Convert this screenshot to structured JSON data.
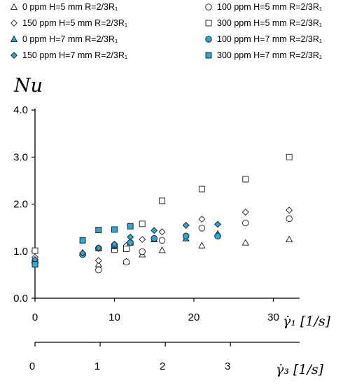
{
  "chart_data": {
    "type": "scatter",
    "ylabel": "Nu",
    "xlabel_primary": "γ̇₁ [1/s]",
    "xlabel_secondary": "γ̇₃ [1/s]",
    "ylim": [
      0,
      4
    ],
    "yticks": [
      "0.0",
      "1.0",
      "2.0",
      "3.0",
      "4.0"
    ],
    "xlim_primary": [
      0,
      37
    ],
    "xticks_primary": [
      "0",
      "10",
      "20",
      "30"
    ],
    "xticks_secondary": [
      "0",
      "1",
      "2",
      "3"
    ],
    "secondary_axis_ticks_primary_units": [
      0,
      8.2,
      16.4,
      24.6
    ],
    "grid": false,
    "legend_position": "top",
    "series": [
      {
        "name": "0 ppm H=5 mm R=2/3R₁",
        "marker": "triangle",
        "fill": "#ffffff",
        "x": [
          0,
          8,
          10,
          11.5,
          13.5,
          16,
          21,
          26.5,
          32
        ],
        "y": [
          0.82,
          0.72,
          1.07,
          0.78,
          0.93,
          1.02,
          1.12,
          1.18,
          1.25
        ]
      },
      {
        "name": "100 ppm H=5 mm R=2/3R₁",
        "marker": "circle",
        "fill": "#ffffff",
        "x": [
          0,
          8,
          11.5,
          13.5,
          16,
          21,
          26.5,
          32
        ],
        "y": [
          0.75,
          0.6,
          0.77,
          0.99,
          1.23,
          1.49,
          1.6,
          1.69
        ]
      },
      {
        "name": "150 ppm H=5 mm R=2/3R₁",
        "marker": "diamond",
        "fill": "#ffffff",
        "x": [
          0,
          8,
          10,
          11.5,
          13.5,
          16,
          21,
          26.5,
          32
        ],
        "y": [
          0.87,
          0.8,
          1.09,
          1.12,
          1.25,
          1.41,
          1.68,
          1.83,
          1.87
        ]
      },
      {
        "name": "300 ppm H=5 mm R=2/3R₁",
        "marker": "square",
        "fill": "#ffffff",
        "x": [
          0,
          10,
          11.5,
          13.5,
          16,
          21,
          26.5,
          32
        ],
        "y": [
          1.01,
          1.03,
          1.05,
          1.58,
          2.07,
          2.32,
          2.53,
          3.0
        ]
      },
      {
        "name": "0 ppm H=7 mm R=2/3R₁",
        "marker": "triangle",
        "fill": "#29a8d6",
        "x": [
          0,
          6,
          8,
          10,
          12,
          15,
          19,
          23
        ],
        "y": [
          0.8,
          0.97,
          1.06,
          1.1,
          1.18,
          1.25,
          1.27,
          1.37
        ]
      },
      {
        "name": "100 ppm H=7 mm R=2/3R₁",
        "marker": "circle",
        "fill": "#29a8d6",
        "x": [
          0,
          6,
          8,
          10,
          12,
          15,
          19,
          23
        ],
        "y": [
          0.77,
          0.93,
          1.06,
          1.13,
          1.18,
          1.27,
          1.32,
          1.32
        ]
      },
      {
        "name": "150 ppm H=7 mm R=2/3R₁",
        "marker": "diamond",
        "fill": "#29a8d6",
        "x": [
          0,
          6,
          8,
          10,
          12,
          15,
          19,
          23
        ],
        "y": [
          0.82,
          0.96,
          1.07,
          1.15,
          1.3,
          1.44,
          1.55,
          1.57
        ]
      },
      {
        "name": "300 ppm H=7 mm R=2/3R₁",
        "marker": "square",
        "fill": "#29a8d6",
        "x": [
          0,
          6,
          8,
          10,
          12
        ],
        "y": [
          0.72,
          1.23,
          1.45,
          1.46,
          1.53
        ]
      }
    ]
  }
}
